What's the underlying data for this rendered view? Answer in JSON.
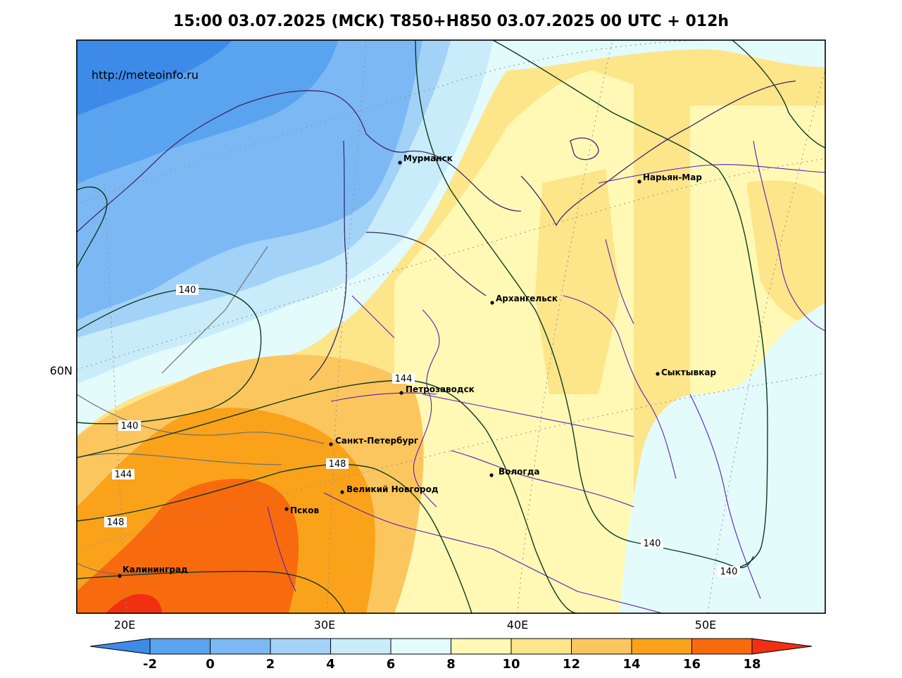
{
  "title": "15:00 03.07.2025 (МСК) T850+H850 03.07.2025 00 UTC + 012h",
  "source": "http://meteoinfo.ru",
  "lat_labels": [
    "60N"
  ],
  "lon_labels": [
    "20E",
    "30E",
    "40E",
    "50E"
  ],
  "cities": [
    {
      "name": "Мурманск"
    },
    {
      "name": "Нарьян-Мар"
    },
    {
      "name": "Архангельск"
    },
    {
      "name": "Сыктывкар"
    },
    {
      "name": "Петрозаводск"
    },
    {
      "name": "Санкт-Петербург"
    },
    {
      "name": "Вологда"
    },
    {
      "name": "Великий Новгород"
    },
    {
      "name": "Псков"
    },
    {
      "name": "Калининград"
    }
  ],
  "isoline_labels": [
    "140",
    "140",
    "144",
    "144",
    "148",
    "148",
    "140",
    "140"
  ],
  "colorbar": {
    "ticks": [
      "-2",
      "0",
      "2",
      "4",
      "6",
      "8",
      "10",
      "12",
      "14",
      "16",
      "18"
    ],
    "colors": [
      "#3d8be8",
      "#5aa3ef",
      "#7cb9f4",
      "#a3d2f8",
      "#c8ecfa",
      "#e4fbfc",
      "#fff9b5",
      "#fde58a",
      "#fcc65e",
      "#fba21b",
      "#f86a0e",
      "#f03010"
    ]
  },
  "colors": {
    "isoline": "#0d3a1e",
    "borders": "#5a1eb4",
    "coast": "#707070",
    "frame": "#000000"
  }
}
